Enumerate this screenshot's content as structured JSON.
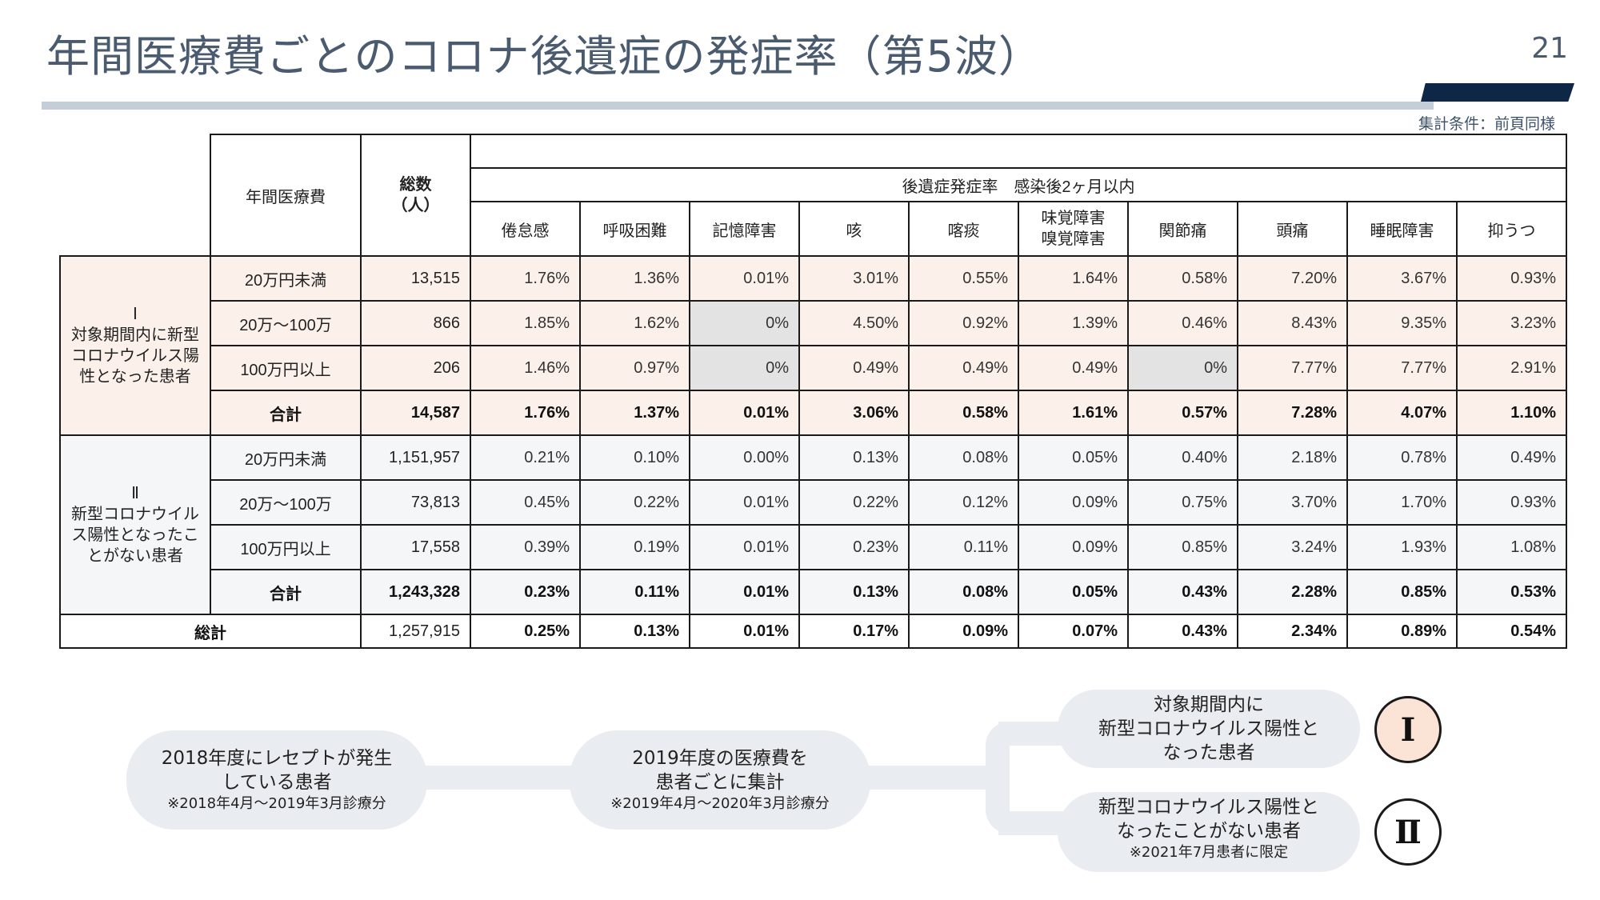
{
  "header": {
    "title": "年間医療費ごとのコロナ後遺症の発症率（第5波）",
    "page_number": "21",
    "condition_note": "集計条件：前頁同様"
  },
  "table": {
    "col_headers": {
      "annual_cost": "年間医療費",
      "total_l1": "総数",
      "total_l2": "（人）",
      "group": "後遺症発症率　感染後2ヶ月以内",
      "symptoms": [
        "倦怠感",
        "呼吸困難",
        "記憶障害",
        "咳",
        "喀痰",
        "味覚障害",
        "関節痛",
        "頭痛",
        "睡眠障害",
        "抑うつ"
      ],
      "symptom_taste_l1": "味覚障害",
      "symptom_taste_l2": "嗅覚障害"
    },
    "group1": {
      "label": "Ⅰ\n対象期間内に新型コロナウイルス陽性となった患者",
      "label_mark": "Ⅰ",
      "label_text": "対象期間内に新型コロナウイルス陽性となった患者",
      "rows": [
        {
          "cost": "20万円未満",
          "total": "13,515",
          "values": [
            "1.76%",
            "1.36%",
            "0.01%",
            "3.01%",
            "0.55%",
            "1.64%",
            "0.58%",
            "7.20%",
            "3.67%",
            "0.93%"
          ]
        },
        {
          "cost": "20万～100万",
          "total": "866",
          "values": [
            "1.85%",
            "1.62%",
            "0%",
            "4.50%",
            "0.92%",
            "1.39%",
            "0.46%",
            "8.43%",
            "9.35%",
            "3.23%"
          ]
        },
        {
          "cost": "100万円以上",
          "total": "206",
          "values": [
            "1.46%",
            "0.97%",
            "0%",
            "0.49%",
            "0.49%",
            "0.49%",
            "0%",
            "7.77%",
            "7.77%",
            "2.91%"
          ]
        }
      ],
      "subtotal": {
        "cost": "合計",
        "total": "14,587",
        "values": [
          "1.76%",
          "1.37%",
          "0.01%",
          "3.06%",
          "0.58%",
          "1.61%",
          "0.57%",
          "7.28%",
          "4.07%",
          "1.10%"
        ]
      }
    },
    "group2": {
      "label_mark": "Ⅱ",
      "label_text": "新型コロナウイルス陽性となったことがない患者",
      "rows": [
        {
          "cost": "20万円未満",
          "total": "1,151,957",
          "values": [
            "0.21%",
            "0.10%",
            "0.00%",
            "0.13%",
            "0.08%",
            "0.05%",
            "0.40%",
            "2.18%",
            "0.78%",
            "0.49%"
          ]
        },
        {
          "cost": "20万～100万",
          "total": "73,813",
          "values": [
            "0.45%",
            "0.22%",
            "0.01%",
            "0.22%",
            "0.12%",
            "0.09%",
            "0.75%",
            "3.70%",
            "1.70%",
            "0.93%"
          ]
        },
        {
          "cost": "100万円以上",
          "total": "17,558",
          "values": [
            "0.39%",
            "0.19%",
            "0.01%",
            "0.23%",
            "0.11%",
            "0.09%",
            "0.85%",
            "3.24%",
            "1.93%",
            "1.08%"
          ]
        }
      ],
      "subtotal": {
        "cost": "合計",
        "total": "1,243,328",
        "values": [
          "0.23%",
          "0.11%",
          "0.01%",
          "0.13%",
          "0.08%",
          "0.05%",
          "0.43%",
          "2.28%",
          "0.85%",
          "0.53%"
        ]
      }
    },
    "grand_total": {
      "label": "総計",
      "total": "1,257,915",
      "values": [
        "0.25%",
        "0.13%",
        "0.01%",
        "0.17%",
        "0.09%",
        "0.07%",
        "0.43%",
        "2.34%",
        "0.89%",
        "0.54%"
      ]
    }
  },
  "flow": {
    "step1": {
      "l1": "2018年度にレセプトが発生",
      "l2": "している患者",
      "note": "※2018年4月～2019年3月診療分"
    },
    "step2": {
      "l1": "2019年度の医療費を",
      "l2": "患者ごとに集計",
      "note": "※2019年4月～2020年3月診療分"
    },
    "branch1": {
      "l1": "対象期間内に",
      "l2": "新型コロナウイルス陽性と",
      "l3": "なった患者",
      "mark": "Ⅰ",
      "color": "#fbe3d6"
    },
    "branch2": {
      "l1": "新型コロナウイルス陽性と",
      "l2": "なったことがない患者",
      "note": "※2021年7月患者に限定",
      "mark": "Ⅱ"
    }
  }
}
